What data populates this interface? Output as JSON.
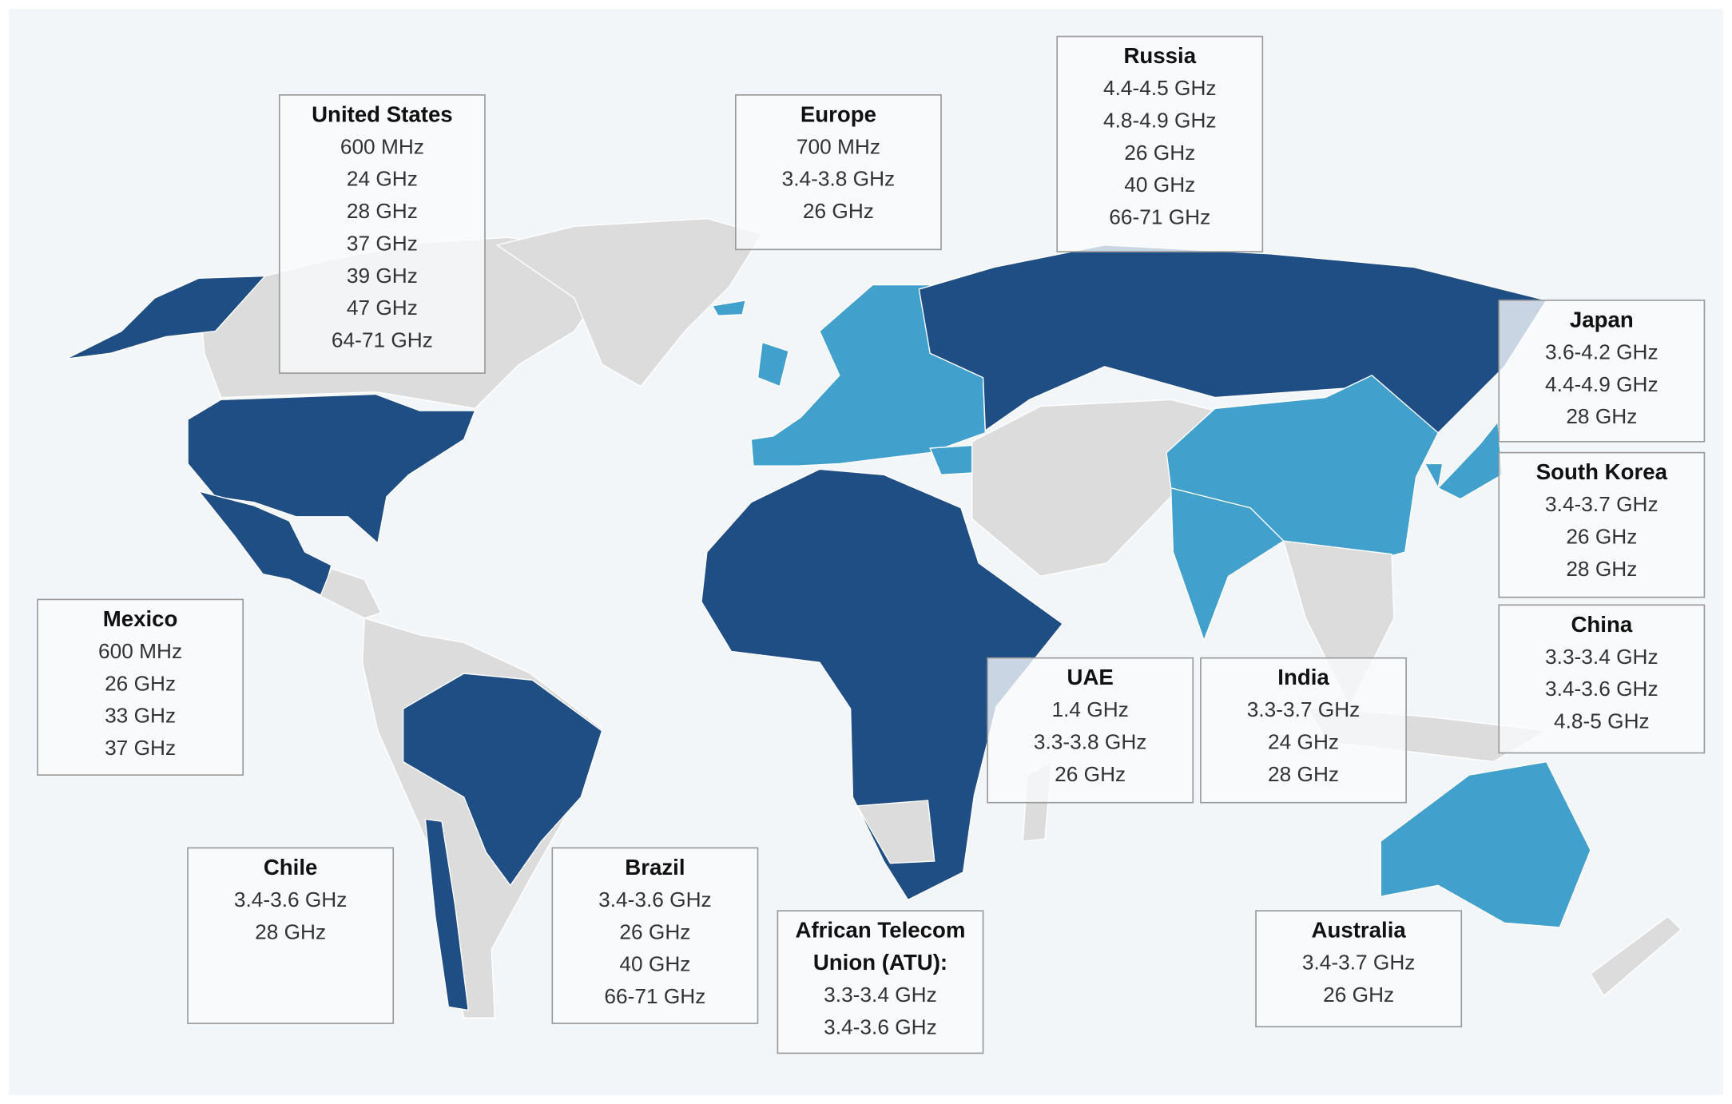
{
  "regions": [
    {
      "title": "United States",
      "bands": [
        "600 MHz",
        "24 GHz",
        "28 GHz",
        "37 GHz",
        "39 GHz",
        "47 GHz",
        "64-71 GHz"
      ]
    },
    {
      "title": "Europe",
      "bands": [
        "700 MHz",
        "3.4-3.8 GHz",
        "26 GHz"
      ]
    },
    {
      "title": "Russia",
      "bands": [
        "4.4-4.5 GHz",
        "4.8-4.9 GHz",
        "26 GHz",
        "40 GHz",
        "66-71 GHz"
      ]
    },
    {
      "title": "Japan",
      "bands": [
        "3.6-4.2 GHz",
        "4.4-4.9 GHz",
        "28 GHz"
      ]
    },
    {
      "title": "South Korea",
      "bands": [
        "3.4-3.7 GHz",
        "26 GHz",
        "28 GHz"
      ]
    },
    {
      "title": "China",
      "bands": [
        "3.3-3.4 GHz",
        "3.4-3.6 GHz",
        "4.8-5 GHz"
      ]
    },
    {
      "title": "UAE",
      "bands": [
        "1.4 GHz",
        "3.3-3.8 GHz",
        "26 GHz"
      ]
    },
    {
      "title": "India",
      "bands": [
        "3.3-3.7 GHz",
        "24 GHz",
        "28 GHz"
      ]
    },
    {
      "title": "Mexico",
      "bands": [
        "600 MHz",
        "26 GHz",
        "33 GHz",
        "37 GHz"
      ]
    },
    {
      "title": "Chile",
      "bands": [
        "3.4-3.6 GHz",
        "28 GHz"
      ]
    },
    {
      "title": "Brazil",
      "bands": [
        "3.4-3.6 GHz",
        "26 GHz",
        "40 GHz",
        "66-71 GHz"
      ]
    },
    {
      "title": [
        "African Telecom",
        "Union (ATU):"
      ],
      "bands": [
        "3.3-3.4 GHz",
        "3.4-3.6 GHz"
      ]
    },
    {
      "title": "Australia",
      "bands": [
        "3.4-3.7 GHz",
        "26 GHz"
      ]
    }
  ]
}
